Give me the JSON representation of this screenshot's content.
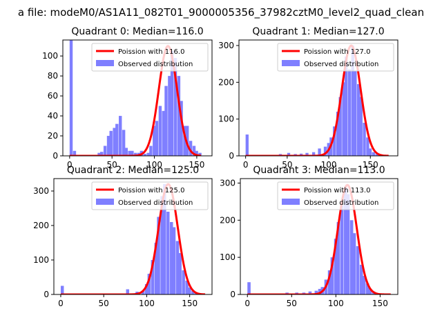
{
  "figure": {
    "suptitle": "a file: modeM0/AS1A11_082T01_9000005356_37982cztM0_level2_quad_clean",
    "colors": {
      "poisson": "#ff0000",
      "observed": "#7f7fff",
      "axes": "#000000",
      "background": "#ffffff"
    }
  },
  "chart_data": [
    {
      "type": "bar",
      "quadrant": 0,
      "title": "Quadrant 0: Median=116.0",
      "xlabel": "",
      "ylabel": "",
      "xlim": [
        -8,
        168
      ],
      "ylim": [
        0,
        116
      ],
      "xticks": [
        0,
        50,
        100,
        150
      ],
      "yticks": [
        0,
        20,
        40,
        60,
        80,
        100
      ],
      "grid": false,
      "legend_position": "upper right",
      "legend": [
        "Poission with 116.0",
        "Observed distribution"
      ],
      "median": 116,
      "bin_width": 3.6,
      "histogram": {
        "name": "Observed distribution",
        "x": [
          0,
          4,
          33,
          36,
          40,
          44,
          47,
          51,
          54,
          58,
          62,
          65,
          69,
          72,
          76,
          80,
          83,
          87,
          91,
          94,
          98,
          101,
          105,
          109,
          112,
          116,
          119,
          123,
          127,
          130,
          134,
          137,
          141,
          145,
          148,
          152
        ],
        "y": [
          116,
          5,
          3,
          4,
          10,
          20,
          25,
          28,
          32,
          40,
          26,
          8,
          5,
          5,
          3,
          3,
          5,
          2,
          3,
          10,
          30,
          35,
          50,
          45,
          70,
          80,
          105,
          98,
          80,
          55,
          30,
          30,
          15,
          10,
          5,
          3
        ]
      },
      "poisson": {
        "name": "Poission with 116.0",
        "mean": 116,
        "x_range": [
          0,
          155
        ],
        "peak": 110
      }
    },
    {
      "type": "bar",
      "quadrant": 1,
      "title": "Quadrant 1: Median=127.0",
      "xlabel": "",
      "ylabel": "",
      "xlim": [
        -8,
        183
      ],
      "ylim": [
        0,
        315
      ],
      "xticks": [
        0,
        50,
        100,
        150
      ],
      "yticks": [
        0,
        100,
        200,
        300
      ],
      "grid": false,
      "legend_position": "upper right",
      "legend": [
        "Poission with 127.0",
        "Observed distribution"
      ],
      "median": 127,
      "bin_width": 3.6,
      "histogram": {
        "name": "Observed distribution",
        "x": [
          0,
          40,
          50,
          58,
          65,
          72,
          80,
          87,
          94,
          98,
          101,
          105,
          109,
          112,
          116,
          119,
          123,
          127,
          130,
          134,
          137,
          141,
          145,
          148,
          152,
          156
        ],
        "y": [
          58,
          5,
          8,
          5,
          6,
          8,
          10,
          20,
          25,
          35,
          50,
          80,
          120,
          160,
          200,
          270,
          235,
          300,
          230,
          195,
          160,
          90,
          50,
          20,
          10,
          5
        ]
      },
      "poisson": {
        "name": "Poission with 127.0",
        "mean": 127,
        "x_range": [
          0,
          172
        ],
        "peak": 300
      }
    },
    {
      "type": "bar",
      "quadrant": 2,
      "title": "Quadrant 2: Median=125.0",
      "xlabel": "",
      "ylabel": "",
      "xlim": [
        -8,
        176
      ],
      "ylim": [
        0,
        336
      ],
      "xticks": [
        0,
        50,
        100,
        150
      ],
      "yticks": [
        0,
        100,
        200,
        300
      ],
      "grid": false,
      "legend_position": "upper right",
      "legend": [
        "Poission with 125.0",
        "Observed distribution"
      ],
      "median": 125,
      "bin_width": 3.6,
      "histogram": {
        "name": "Observed distribution",
        "x": [
          0,
          76,
          87,
          94,
          98,
          101,
          105,
          109,
          112,
          116,
          119,
          123,
          127,
          130,
          134,
          137,
          141,
          145,
          148,
          152,
          156,
          159
        ],
        "y": [
          25,
          15,
          8,
          10,
          30,
          60,
          100,
          150,
          225,
          285,
          320,
          240,
          210,
          195,
          155,
          120,
          70,
          40,
          20,
          10,
          5,
          3
        ]
      },
      "poisson": {
        "name": "Poission with 125.0",
        "mean": 125,
        "x_range": [
          0,
          168
        ],
        "peak": 320
      }
    },
    {
      "type": "bar",
      "quadrant": 3,
      "title": "Quadrant 3: Median=113.0",
      "xlabel": "",
      "ylabel": "",
      "xlim": [
        -8,
        170
      ],
      "ylim": [
        0,
        312
      ],
      "xticks": [
        0,
        50,
        100,
        150
      ],
      "yticks": [
        0,
        100,
        200,
        300
      ],
      "grid": false,
      "legend_position": "upper right",
      "legend": [
        "Poission with 113.0",
        "Observed distribution"
      ],
      "median": 113,
      "bin_width": 3.6,
      "histogram": {
        "name": "Observed distribution",
        "x": [
          0,
          43,
          54,
          62,
          69,
          76,
          80,
          83,
          87,
          91,
          94,
          98,
          101,
          105,
          109,
          112,
          116,
          119,
          123,
          127,
          130,
          134,
          137,
          141
        ],
        "y": [
          33,
          5,
          5,
          5,
          8,
          10,
          15,
          20,
          40,
          65,
          100,
          150,
          195,
          240,
          290,
          270,
          200,
          165,
          130,
          80,
          50,
          30,
          15,
          8
        ]
      },
      "poisson": {
        "name": "Poission with 113.0",
        "mean": 113,
        "x_range": [
          0,
          162
        ],
        "peak": 295
      }
    }
  ]
}
